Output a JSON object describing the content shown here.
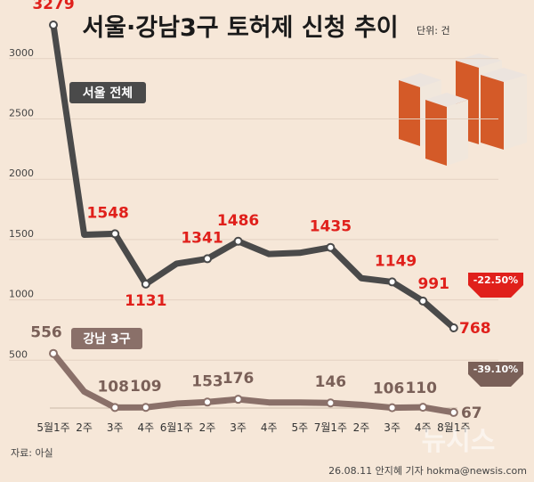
{
  "title": "서울·강남3구 토허제 신청 추이",
  "unit": "단위: 건",
  "source": "자료: 아실",
  "credit": "26.08.11 안지혜 기자 hokma@newsis.com",
  "watermark": "뉴시스",
  "chart_data": {
    "type": "line",
    "categories": [
      "5월1주",
      "2주",
      "3주",
      "4주",
      "6월1주",
      "2주",
      "3주",
      "4주",
      "5주",
      "7월1주",
      "2주",
      "3주",
      "4주",
      "8월1주"
    ],
    "yticks": [
      500,
      1000,
      1500,
      2000,
      2500,
      3000
    ],
    "ylim": [
      0,
      3400
    ],
    "series": [
      {
        "name": "서울 전체",
        "color": "#4a4a4a",
        "values": [
          3279,
          1540,
          1548,
          1131,
          1300,
          1341,
          1486,
          1380,
          1390,
          1435,
          1180,
          1149,
          991,
          768
        ],
        "labels": [
          "3279",
          null,
          "1548",
          "1131",
          null,
          "1341",
          "1486",
          null,
          null,
          "1435",
          null,
          "1149",
          "991",
          "768"
        ],
        "change": "-22.50%"
      },
      {
        "name": "강남 3구",
        "color": "#8a7069",
        "values": [
          556,
          240,
          108,
          109,
          140,
          153,
          176,
          150,
          150,
          146,
          130,
          106,
          110,
          67
        ],
        "labels": [
          "556",
          null,
          "108",
          "109",
          null,
          "153",
          "176",
          null,
          null,
          "146",
          null,
          "106",
          "110",
          "67"
        ],
        "change": "-39.10%"
      }
    ]
  }
}
